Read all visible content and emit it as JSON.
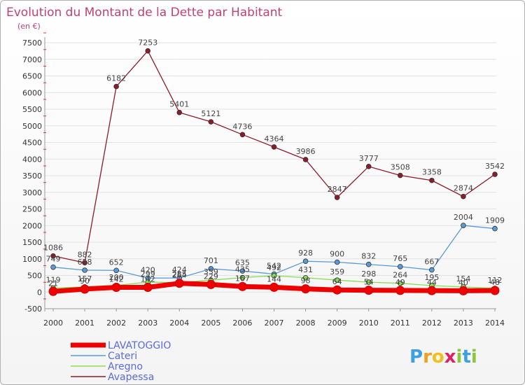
{
  "chart_data": {
    "type": "line",
    "title": "Evolution du Montant de la Dette par Habitant",
    "subtitle": "(en €)",
    "xlabel": "",
    "ylabel": "",
    "ylim": [
      -500,
      7500
    ],
    "yticks": [
      -500,
      0,
      500,
      1000,
      1500,
      2000,
      2500,
      3000,
      3500,
      4000,
      4500,
      5000,
      5500,
      6000,
      6500,
      7000,
      7500
    ],
    "categories": [
      "2000",
      "2001",
      "2002",
      "2003",
      "2004",
      "2005",
      "2006",
      "2007",
      "2008",
      "2009",
      "2010",
      "2011",
      "2012",
      "2013",
      "2014"
    ],
    "series": [
      {
        "name": "LAVATOGGIO",
        "color": "#ee0000",
        "values": [
          21,
          90,
          142,
          142,
          264,
          229,
          167,
          144,
          98,
          64,
          54,
          49,
          44,
          40,
          48
        ]
      },
      {
        "name": "Cateri",
        "color": "#5b9bd5",
        "values": [
          749,
          658,
          652,
          420,
          424,
          701,
          635,
          542,
          928,
          900,
          832,
          765,
          667,
          2004,
          1909
        ]
      },
      {
        "name": "Aregno",
        "color": "#88dd55",
        "values": [
          119,
          157,
          200,
          299,
          285,
          359,
          435,
          492,
          431,
          359,
          298,
          264,
          195,
          154,
          112
        ]
      },
      {
        "name": "Avapessa",
        "color": "#8b1c2a",
        "values": [
          1086,
          882,
          6182,
          7253,
          5401,
          5121,
          4736,
          4364,
          3986,
          2847,
          3777,
          3508,
          3358,
          2874,
          3542
        ]
      }
    ]
  },
  "logo": {
    "letters": [
      "P",
      "r",
      "o",
      "x",
      "i",
      "t",
      "i"
    ]
  }
}
